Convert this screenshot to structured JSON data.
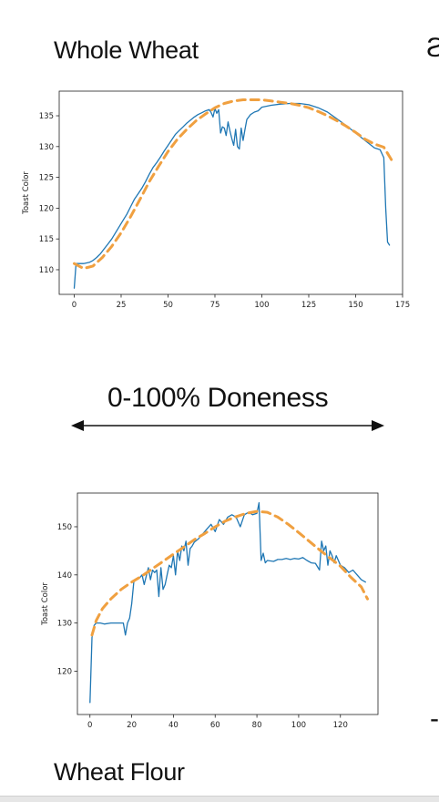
{
  "slide": {
    "title_top": "Whole Wheat",
    "center_label": "0-100% Doneness",
    "title_bottom": "Wheat Flour",
    "edge_glyph_top": "Ƨ",
    "edge_glyph_bottom": "-"
  },
  "colors": {
    "measured": "#1f77b4",
    "fit": "#f0a040",
    "axis": "#222222",
    "arrow": "#111111"
  },
  "chart_data": [
    {
      "type": "line",
      "title": "",
      "xlabel": "",
      "ylabel": "Toast Color",
      "xlim": [
        -8,
        175
      ],
      "ylim": [
        106,
        139
      ],
      "xticks": [
        0,
        25,
        50,
        75,
        100,
        125,
        150,
        175
      ],
      "yticks": [
        110,
        115,
        120,
        125,
        130,
        135
      ],
      "grid": false,
      "series": [
        {
          "style": "solid",
          "color": "#1f77b4",
          "x": [
            0,
            1,
            3,
            5,
            8,
            10,
            12,
            14,
            16,
            18,
            20,
            22,
            24,
            26,
            28,
            30,
            32,
            34,
            36,
            38,
            40,
            42,
            44,
            46,
            48,
            50,
            52,
            54,
            56,
            58,
            60,
            62,
            64,
            66,
            68,
            70,
            72,
            73,
            74,
            75,
            76,
            77,
            78,
            79,
            80,
            81,
            82,
            83,
            84,
            85,
            86,
            87,
            88,
            89,
            90,
            91,
            92,
            94,
            96,
            98,
            100,
            105,
            110,
            115,
            120,
            125,
            130,
            135,
            140,
            145,
            150,
            155,
            160,
            163,
            165,
            166,
            167,
            168
          ],
          "values": [
            107,
            111,
            111,
            111,
            111.2,
            111.5,
            112,
            112.6,
            113.4,
            114.2,
            115,
            116,
            117,
            118,
            119,
            120.2,
            121.4,
            122.3,
            123.2,
            124.3,
            125.5,
            126.6,
            127.4,
            128.3,
            129.3,
            130.2,
            131.1,
            132,
            132.6,
            133.2,
            133.8,
            134.3,
            134.8,
            135.2,
            135.5,
            135.8,
            136,
            135.5,
            134.8,
            136.2,
            135.4,
            136,
            132.2,
            133.2,
            133,
            131.8,
            134,
            132.5,
            131.3,
            130.2,
            132.8,
            130,
            129.6,
            133,
            131,
            132.8,
            134.4,
            135.2,
            135.6,
            135.8,
            136.4,
            136.7,
            136.9,
            137,
            137,
            136.8,
            136.3,
            135.6,
            134.5,
            133.4,
            132.2,
            131,
            129.8,
            129.5,
            128.2,
            120,
            114.5,
            114
          ]
        },
        {
          "style": "dashed",
          "color": "#f0a040",
          "x": [
            0,
            5,
            10,
            15,
            20,
            25,
            30,
            35,
            40,
            45,
            50,
            55,
            60,
            65,
            70,
            75,
            80,
            85,
            90,
            95,
            100,
            105,
            110,
            115,
            120,
            125,
            130,
            135,
            140,
            145,
            150,
            155,
            160,
            165,
            170
          ],
          "values": [
            111,
            110.2,
            110.6,
            112,
            113.8,
            116,
            118.6,
            121.4,
            124.3,
            126.8,
            129.2,
            131.2,
            132.8,
            134.2,
            135.3,
            136.3,
            137,
            137.4,
            137.6,
            137.6,
            137.6,
            137.4,
            137.2,
            137,
            136.7,
            136.3,
            135.7,
            135,
            134.2,
            133.3,
            132.3,
            131.2,
            130.4,
            129.9,
            127.4
          ]
        }
      ]
    },
    {
      "type": "line",
      "title": "",
      "xlabel": "",
      "ylabel": "Toast Color",
      "xlim": [
        -6,
        138
      ],
      "ylim": [
        111,
        157
      ],
      "xticks": [
        0,
        20,
        40,
        60,
        80,
        100,
        120
      ],
      "yticks": [
        120,
        130,
        140,
        150
      ],
      "grid": false,
      "series": [
        {
          "style": "solid",
          "color": "#1f77b4",
          "x": [
            0,
            1,
            2,
            3,
            5,
            7,
            10,
            13,
            16,
            17,
            18,
            19,
            20,
            21,
            22,
            24,
            25,
            26,
            28,
            29,
            30,
            31,
            32,
            33,
            34,
            35,
            36,
            37,
            38,
            39,
            40,
            41,
            42,
            43,
            44,
            45,
            46,
            47,
            48,
            49,
            50,
            52,
            54,
            56,
            58,
            60,
            62,
            64,
            66,
            68,
            70,
            72,
            74,
            76,
            78,
            80,
            81,
            82,
            83,
            84,
            85,
            88,
            90,
            92,
            94,
            96,
            98,
            100,
            102,
            104,
            106,
            108,
            110,
            111,
            112,
            113,
            114,
            115,
            116,
            117,
            118,
            119,
            120,
            122,
            124,
            126,
            128,
            130,
            132
          ],
          "values": [
            113.5,
            127,
            129.5,
            130,
            130,
            129.8,
            130,
            130,
            130,
            127.5,
            130,
            131,
            134,
            138.5,
            139,
            139.5,
            140,
            138,
            141.5,
            139,
            141,
            140.5,
            141,
            135.5,
            141.5,
            137,
            138,
            140,
            142,
            141.5,
            144,
            140,
            145,
            143,
            146,
            145,
            147,
            142,
            145.5,
            146,
            146.8,
            147.5,
            148.5,
            149.5,
            150.5,
            149,
            151.5,
            150.5,
            152,
            152.5,
            152,
            150,
            152.5,
            153,
            152.5,
            152.8,
            155,
            143,
            144.5,
            142.5,
            143,
            142.8,
            143.2,
            143.2,
            143.4,
            143.2,
            143.4,
            143.3,
            143.6,
            143,
            142.5,
            142.4,
            141,
            147,
            145,
            146,
            142,
            145,
            144,
            142.5,
            144,
            143,
            142,
            141.5,
            140.5,
            141,
            140,
            139,
            138.5
          ]
        },
        {
          "style": "dashed",
          "color": "#f0a040",
          "x": [
            1,
            3,
            6,
            10,
            15,
            20,
            25,
            30,
            35,
            40,
            45,
            50,
            55,
            60,
            65,
            70,
            75,
            80,
            85,
            90,
            95,
            100,
            105,
            110,
            115,
            120,
            125,
            130,
            133
          ],
          "values": [
            127.5,
            130.5,
            133,
            135,
            137,
            138.5,
            139.8,
            141.3,
            142.8,
            144.3,
            145.8,
            147.3,
            148.6,
            150,
            151.2,
            152.1,
            152.8,
            153.2,
            153,
            152,
            150.5,
            148.8,
            147,
            145.2,
            143.5,
            141.8,
            139.5,
            137.5,
            135
          ]
        }
      ]
    }
  ]
}
